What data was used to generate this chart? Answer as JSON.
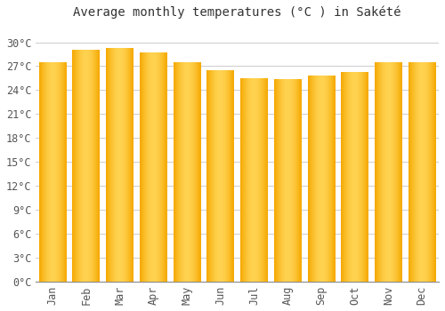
{
  "title": "Average monthly temperatures (°C ) in Sakété",
  "months": [
    "Jan",
    "Feb",
    "Mar",
    "Apr",
    "May",
    "Jun",
    "Jul",
    "Aug",
    "Sep",
    "Oct",
    "Nov",
    "Dec"
  ],
  "values": [
    27.5,
    29.0,
    29.2,
    28.7,
    27.5,
    26.5,
    25.5,
    25.3,
    25.8,
    26.2,
    27.5,
    27.5
  ],
  "bar_color_left": "#F5A800",
  "bar_color_center": "#FFD060",
  "bar_color_right": "#F5A800",
  "background_color": "#FFFFFF",
  "grid_color": "#CCCCCC",
  "ylim": [
    0,
    32
  ],
  "ytick_step": 3,
  "title_fontsize": 10,
  "tick_fontsize": 8.5,
  "font_family": "monospace"
}
